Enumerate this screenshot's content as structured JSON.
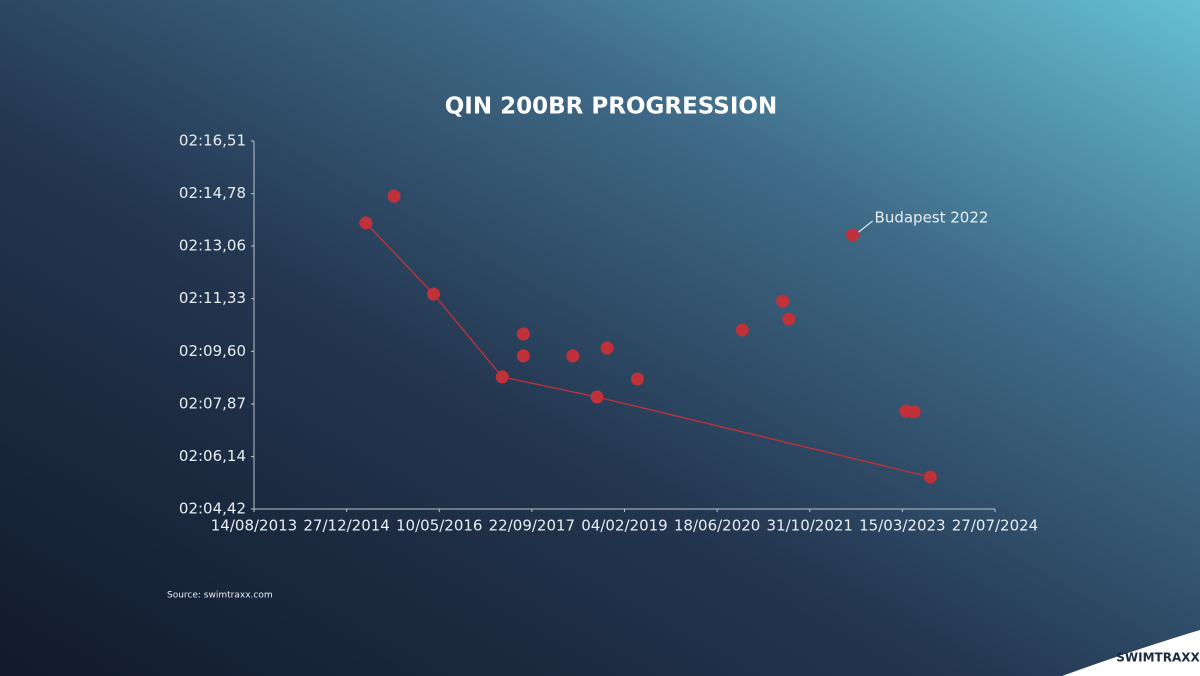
{
  "chart_data": {
    "type": "scatter",
    "title": "QIN 200BR PROGRESSION",
    "source": "Source: swimtraxx.com",
    "brand": "SWIMTRAXX",
    "xlim": [
      "14/08/2013",
      "27/07/2024"
    ],
    "xticks": [
      "14/08/2013",
      "27/12/2014",
      "10/05/2016",
      "22/09/2017",
      "04/02/2019",
      "18/06/2020",
      "31/10/2021",
      "15/03/2023",
      "27/07/2024"
    ],
    "ylim": [
      124.42,
      136.51
    ],
    "yticks": [
      {
        "value": 124.42,
        "label": "02:04,42"
      },
      {
        "value": 126.14,
        "label": "02:06,14"
      },
      {
        "value": 127.87,
        "label": "02:07,87"
      },
      {
        "value": 129.6,
        "label": "02:09,60"
      },
      {
        "value": 131.33,
        "label": "02:11,33"
      },
      {
        "value": 133.06,
        "label": "02:13,06"
      },
      {
        "value": 134.78,
        "label": "02:14,78"
      },
      {
        "value": 136.51,
        "label": "02:16,51"
      }
    ],
    "grid": false,
    "series": [
      {
        "mode": "lines+markers",
        "color": "#c0313a",
        "x": [
          "10/04/2015",
          "09/04/2016",
          "15/04/2017",
          "09/09/2018",
          "13/08/2023"
        ],
        "values": [
          133.82,
          131.48,
          128.76,
          128.1,
          125.47
        ]
      },
      {
        "mode": "markers",
        "color": "#c0313a",
        "x": [
          "09/09/2015",
          "07/08/2017",
          "07/08/2017",
          "01/05/2018",
          "02/11/2018",
          "15/04/2019",
          "01/11/2020",
          "07/06/2021",
          "10/07/2021",
          "19/06/2022",
          "04/04/2023",
          "18/05/2023"
        ],
        "values": [
          134.7,
          130.17,
          129.45,
          129.45,
          129.71,
          128.69,
          130.3,
          131.25,
          130.66,
          133.42,
          127.64,
          127.61
        ]
      }
    ],
    "annotations": [
      {
        "text": "Budapest 2022",
        "x": "19/06/2022",
        "y": 133.42
      }
    ]
  }
}
